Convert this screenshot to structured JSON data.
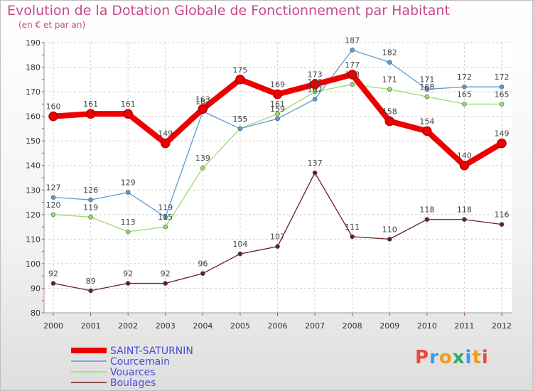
{
  "chart_data": {
    "type": "line",
    "title": "Evolution de la Dotation Globale de Fonctionnement par Habitant",
    "subtitle": "(en € et par an)",
    "x": [
      "2000",
      "2001",
      "2002",
      "2003",
      "2004",
      "2005",
      "2006",
      "2007",
      "2008",
      "2009",
      "2010",
      "2011",
      "2012"
    ],
    "ylim": [
      80,
      190
    ],
    "yticks": [
      80,
      90,
      100,
      110,
      120,
      130,
      140,
      150,
      160,
      170,
      180,
      190
    ],
    "series": [
      {
        "name": "SAINT-SATURNIN",
        "color": "#ee0000",
        "values": [
          160,
          161,
          161,
          149,
          163,
          175,
          169,
          173,
          177,
          158,
          154,
          140,
          149
        ]
      },
      {
        "name": "Courcemain",
        "color": "#5b9bd5",
        "values": [
          127,
          126,
          129,
          119,
          162,
          155,
          159,
          167,
          187,
          182,
          171,
          172,
          172
        ]
      },
      {
        "name": "Vouarces",
        "color": "#99dd66",
        "values": [
          120,
          119,
          113,
          115,
          139,
          155,
          161,
          170,
          173,
          171,
          168,
          165,
          165
        ]
      },
      {
        "name": "Boulages",
        "color": "#6b1e1e",
        "values": [
          92,
          89,
          92,
          92,
          96,
          104,
          107,
          137,
          111,
          110,
          118,
          118,
          116
        ]
      }
    ]
  },
  "logo": {
    "text": "Proxiti",
    "letters": [
      "P",
      "r",
      "o",
      "x",
      "i",
      "t",
      "i"
    ],
    "colors": [
      "#e74c3c",
      "#3399ff",
      "#f39c12",
      "#27ae60",
      "#3399ff",
      "#f39c12",
      "#e74c3c"
    ]
  }
}
